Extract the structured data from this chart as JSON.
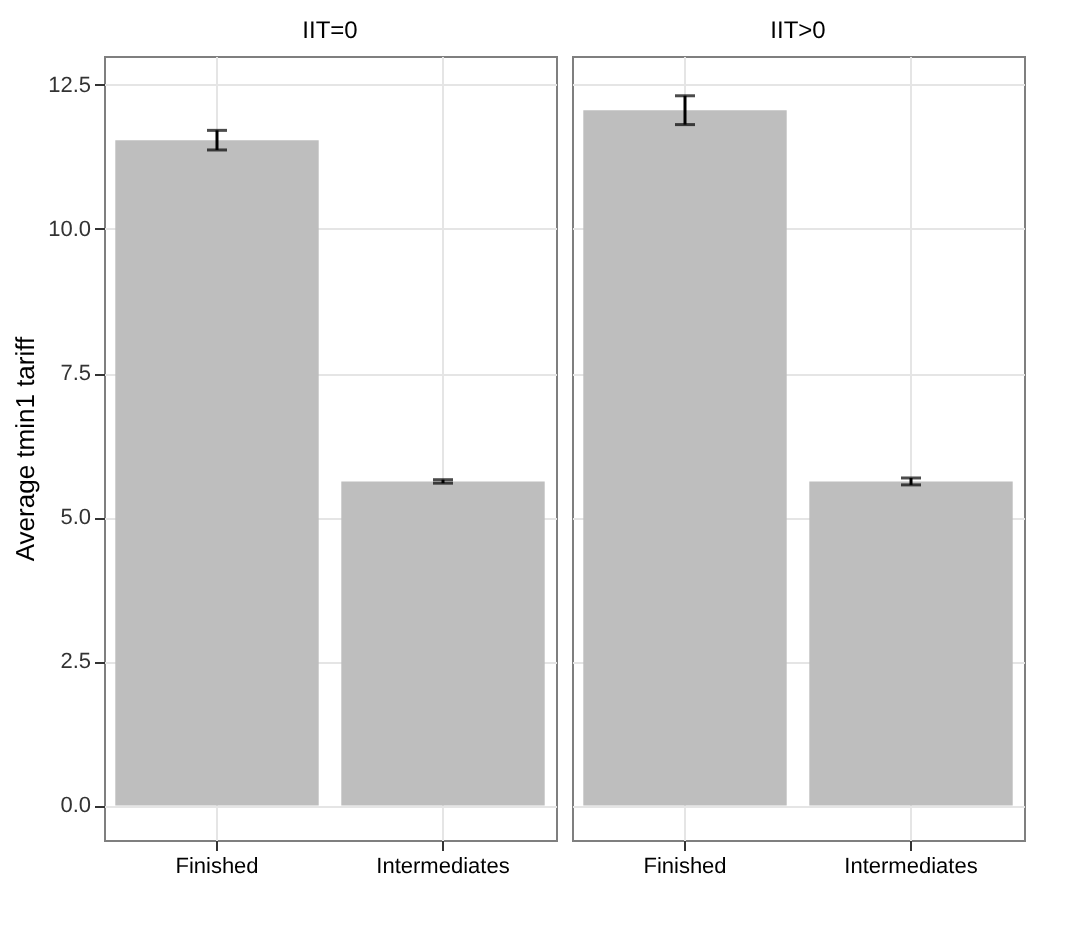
{
  "chart_data": [
    {
      "type": "bar",
      "title": "IIT=0",
      "ylabel": "Average tmin1 tariff",
      "categories": [
        "Finished",
        "Intermediates"
      ],
      "values": [
        11.54,
        5.62
      ],
      "errors": [
        0.17,
        0.03
      ],
      "color": "#bebebe",
      "ylim": [
        -0.6,
        13.0
      ],
      "yticks": [
        {
          "value": 0,
          "label": "0.0"
        },
        {
          "value": 2.5,
          "label": "2.5"
        },
        {
          "value": 5,
          "label": "5.0"
        },
        {
          "value": 7.5,
          "label": "7.5"
        },
        {
          "value": 10,
          "label": "10.0"
        },
        {
          "value": 12.5,
          "label": "12.5"
        }
      ],
      "grid": true
    },
    {
      "type": "bar",
      "title": "IIT>0",
      "categories": [
        "Finished",
        "Intermediates"
      ],
      "values": [
        12.06,
        5.62
      ],
      "errors": [
        0.25,
        0.06
      ],
      "color": "#bebebe",
      "ylim": [
        -0.6,
        13.0
      ],
      "yticks": [
        0,
        2.5,
        5,
        7.5,
        10,
        12.5
      ],
      "grid": true,
      "tick_labels": "x"
    }
  ]
}
